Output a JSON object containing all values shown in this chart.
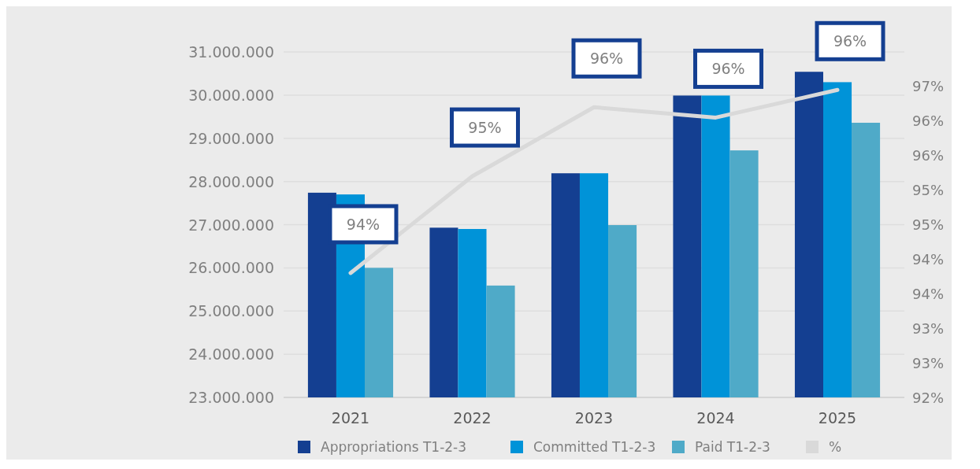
{
  "chart_data": {
    "type": "bar",
    "categories": [
      "2021",
      "2022",
      "2023",
      "2024",
      "2025"
    ],
    "series": [
      {
        "name": "Appropriations T1-2-3",
        "color": "#143f91",
        "values": [
          27740000,
          26930000,
          28190000,
          29990000,
          30540000
        ]
      },
      {
        "name": "Committed T1-2-3",
        "color": "#0093d8",
        "values": [
          27700000,
          26900000,
          28190000,
          29990000,
          30300000
        ]
      },
      {
        "name": "Paid T1-2-3",
        "color": "#4faac8",
        "values": [
          26000000,
          25590000,
          26990000,
          28720000,
          29360000
        ]
      },
      {
        "name": "%",
        "type": "line",
        "axis": "y2",
        "color": "#d9d9d9",
        "values": [
          93.8,
          95.2,
          96.2,
          96.05,
          96.45
        ],
        "value_labels": [
          "94%",
          "95%",
          "96%",
          "96%",
          "96%"
        ]
      }
    ],
    "ylim": [
      23000000,
      31000000
    ],
    "yticks": [
      {
        "value": 23000000,
        "label": "23.000.000"
      },
      {
        "value": 24000000,
        "label": "24.000.000"
      },
      {
        "value": 25000000,
        "label": "25.000.000"
      },
      {
        "value": 26000000,
        "label": "26.000.000"
      },
      {
        "value": 27000000,
        "label": "27.000.000"
      },
      {
        "value": 28000000,
        "label": "28.000.000"
      },
      {
        "value": 29000000,
        "label": "29.000.000"
      },
      {
        "value": 30000000,
        "label": "30.000.000"
      },
      {
        "value": 31000000,
        "label": "31.000.000"
      }
    ],
    "y2lim": [
      92,
      97
    ],
    "y2ticks": [
      {
        "value": 92,
        "label": "92%"
      },
      {
        "value": 92.5,
        "label": "93%"
      },
      {
        "value": 93,
        "label": "93%"
      },
      {
        "value": 93.5,
        "label": "94%"
      },
      {
        "value": 94,
        "label": "94%"
      },
      {
        "value": 94.5,
        "label": "95%"
      },
      {
        "value": 95,
        "label": "95%"
      },
      {
        "value": 95.5,
        "label": "96%"
      },
      {
        "value": 96,
        "label": "96%"
      },
      {
        "value": 96.5,
        "label": "97%"
      }
    ],
    "grid": "y",
    "legend": "bottom"
  }
}
